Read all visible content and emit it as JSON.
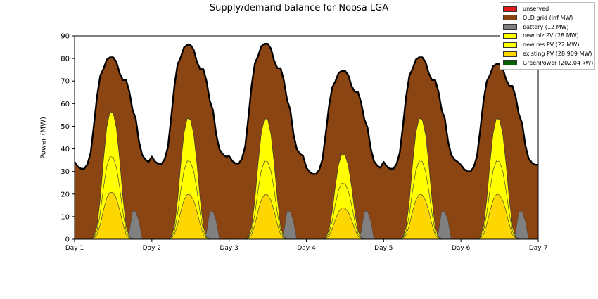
{
  "chart_data": {
    "type": "area",
    "title": "Supply/demand balance for Noosa LGA",
    "xlabel": "",
    "ylabel": "Power (MW)",
    "x_range": [
      0,
      6
    ],
    "ylim": [
      0,
      90
    ],
    "y_ticks": [
      0,
      10,
      20,
      30,
      40,
      50,
      60,
      70,
      80,
      90
    ],
    "x_ticks": [
      0,
      1,
      2,
      3,
      4,
      5,
      6
    ],
    "x_tick_labels": [
      "Day 1",
      "Day 2",
      "Day 3",
      "Day 4",
      "Day 5",
      "Day 6",
      "Day 7"
    ],
    "grid": false,
    "legend_position": "top-right",
    "colors": {
      "unserved": "#e31a1c",
      "grid": "#8b4513",
      "battery": "#808080",
      "biz_pv": "#ffff00",
      "res_pv": "#ffff00",
      "existing_pv": "#ffd700",
      "greenpower": "#006400",
      "demand_line": "#000000"
    },
    "legend": [
      {
        "label": "unserved",
        "color": "#e31a1c"
      },
      {
        "label": "QLD grid (inf MW)",
        "color": "#8b4513"
      },
      {
        "label": "battery (12 MW)",
        "color": "#808080"
      },
      {
        "label": "new biz PV (28 MW)",
        "color": "#ffff00"
      },
      {
        "label": "new res PV (22 MW)",
        "color": "#ffff00"
      },
      {
        "label": "existing PV (28.909 MW)",
        "color": "#ffd700"
      },
      {
        "label": "GreenPower (202.04 kW)",
        "color": "#006400"
      }
    ],
    "demand_hourly_profile": [
      34,
      32,
      31,
      31,
      33,
      38,
      50,
      63,
      72,
      75,
      79,
      80,
      80,
      78,
      73,
      70,
      70,
      65,
      57,
      53,
      43,
      37,
      35,
      34
    ],
    "day_peak_demand": [
      80.5,
      86,
      86.5,
      74.5,
      80.5,
      77.5
    ],
    "pv_hourly_shape": [
      0,
      0,
      0,
      0,
      0,
      0,
      0.02,
      0.1,
      0.32,
      0.62,
      0.87,
      0.99,
      0.98,
      0.86,
      0.62,
      0.33,
      0.1,
      0.02,
      0,
      0,
      0,
      0,
      0,
      0
    ],
    "day_pv_peaks": [
      {
        "existing": 21,
        "res": 37,
        "biz": 57
      },
      {
        "existing": 20,
        "res": 35,
        "biz": 54
      },
      {
        "existing": 20,
        "res": 35,
        "biz": 54
      },
      {
        "existing": 14,
        "res": 25,
        "biz": 38
      },
      {
        "existing": 20,
        "res": 35,
        "biz": 54
      },
      {
        "existing": 20,
        "res": 35,
        "biz": 54
      }
    ],
    "battery_hourly_profile": [
      0,
      0,
      0,
      0,
      0,
      0,
      0,
      0,
      0,
      0,
      0,
      0,
      0,
      0,
      0,
      0,
      0,
      3,
      12.3,
      12.3,
      8,
      0,
      0,
      0
    ],
    "series": [
      {
        "name": "unserved",
        "values": []
      },
      {
        "name": "QLD grid (inf MW)",
        "values": []
      },
      {
        "name": "battery (12 MW)",
        "values": []
      },
      {
        "name": "new biz PV (28 MW)",
        "values": []
      },
      {
        "name": "new res PV (22 MW)",
        "values": []
      },
      {
        "name": "existing PV (28.909 MW)",
        "values": []
      },
      {
        "name": "GreenPower (202.04 kW)",
        "values": []
      }
    ]
  }
}
